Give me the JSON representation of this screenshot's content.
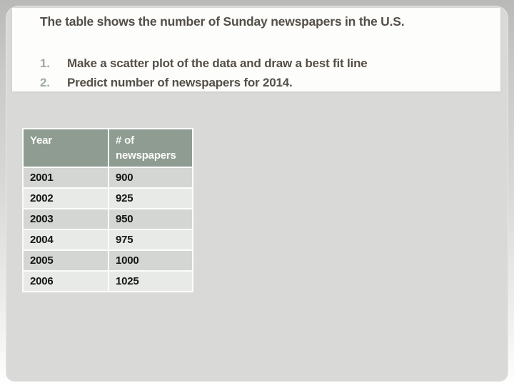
{
  "slide": {
    "title": "The table shows the number of Sunday newspapers in the U.S.",
    "instructions": [
      {
        "number": "1.",
        "text": "Make a scatter plot of the data and draw a best fit line"
      },
      {
        "number": "2.",
        "text": "Predict number of newspapers for 2014."
      }
    ]
  },
  "table": {
    "headers": [
      "Year",
      "# of newspapers"
    ],
    "rows": [
      [
        "2001",
        "900"
      ],
      [
        "2002",
        "925"
      ],
      [
        "2003",
        "950"
      ],
      [
        "2004",
        "975"
      ],
      [
        "2005",
        "1000"
      ],
      [
        "2006",
        "1025"
      ]
    ]
  },
  "chart_data": {
    "type": "table",
    "title": "Number of Sunday newspapers in the U.S.",
    "columns": [
      "Year",
      "# of newspapers"
    ],
    "x": [
      2001,
      2002,
      2003,
      2004,
      2005,
      2006
    ],
    "values": [
      900,
      925,
      950,
      975,
      1000,
      1025
    ]
  },
  "colors": {
    "slide_background": "#d9d9d7",
    "textbox_background": "#fdfdfc",
    "title_text": "#544f47",
    "list_number": "#9ea99f",
    "table_header_background": "#8e9c92",
    "table_header_text": "#fbfbfa",
    "table_row_dark": "#d3d6d2",
    "table_row_light": "#e8eae7",
    "table_cell_text": "#151515"
  }
}
